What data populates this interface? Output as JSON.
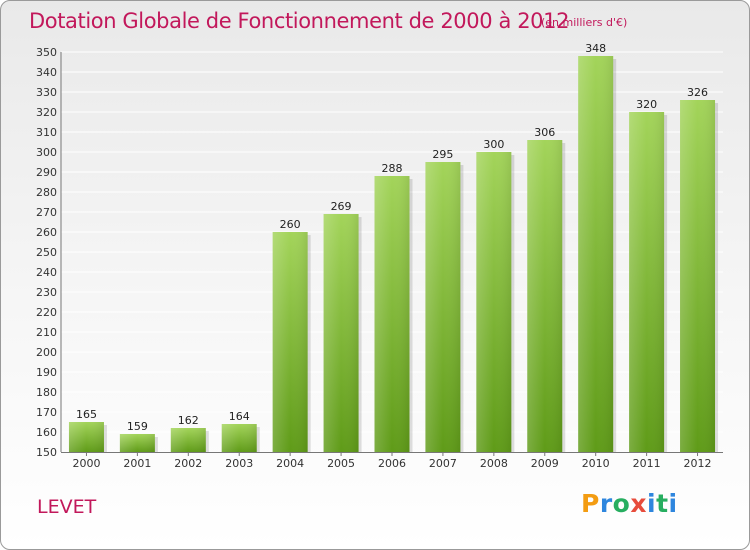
{
  "header": {
    "title": "Dotation Globale de Fonctionnement de 2000 à 2012",
    "unit": "(en milliers d'€)"
  },
  "commune": "LEVET",
  "logo": {
    "text": "Proxiti"
  },
  "colors": {
    "bar_light": "#9ccf4e",
    "bar_dark": "#62a01a",
    "title": "#c2185b"
  },
  "chart_data": {
    "type": "bar",
    "title": "Dotation Globale de Fonctionnement de 2000 à 2012",
    "subtitle": "(en milliers d'€)",
    "categories": [
      "2000",
      "2001",
      "2002",
      "2003",
      "2004",
      "2005",
      "2006",
      "2007",
      "2008",
      "2009",
      "2010",
      "2011",
      "2012"
    ],
    "values": [
      165,
      159,
      162,
      164,
      260,
      269,
      288,
      295,
      300,
      306,
      348,
      320,
      326
    ],
    "ylim": [
      150,
      350
    ],
    "yticks": [
      150,
      160,
      170,
      180,
      190,
      200,
      210,
      220,
      230,
      240,
      250,
      260,
      270,
      280,
      290,
      300,
      310,
      320,
      330,
      340,
      350
    ],
    "grid": true,
    "xlabel": "",
    "ylabel": ""
  }
}
